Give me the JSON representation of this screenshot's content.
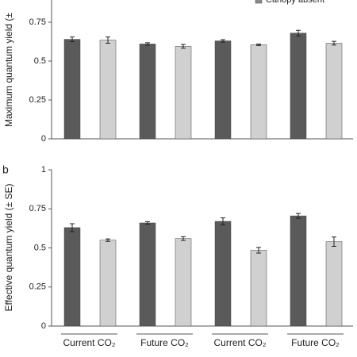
{
  "chart_data": [
    {
      "type": "bar",
      "y_label": "Maximum quantum yield (±",
      "ylim": [
        0,
        1
      ],
      "yticks": [
        0,
        0.25,
        0.5,
        0.75
      ],
      "series": [
        {
          "color": "#5a5a5a",
          "values": [
            0.64,
            0.61,
            0.63,
            0.68
          ],
          "errors": [
            0.015,
            0.008,
            0.008,
            0.018
          ]
        },
        {
          "name": "Canopy absent",
          "color": "#d0d0d0",
          "values": [
            0.635,
            0.595,
            0.605,
            0.615
          ],
          "errors": [
            0.02,
            0.012,
            0.005,
            0.012
          ]
        }
      ]
    },
    {
      "type": "bar",
      "panel_label": "b",
      "y_label": "Effective quantum yield (± SE)",
      "categories": [
        "Current CO₂",
        "Future CO₂",
        "Current CO₂",
        "Future CO₂"
      ],
      "ylim": [
        0,
        1
      ],
      "yticks": [
        0,
        0.25,
        0.5,
        0.75,
        1
      ],
      "series": [
        {
          "color": "#5a5a5a",
          "values": [
            0.63,
            0.66,
            0.67,
            0.705
          ],
          "errors": [
            0.025,
            0.008,
            0.022,
            0.015
          ]
        },
        {
          "color": "#d0d0d0",
          "values": [
            0.55,
            0.56,
            0.485,
            0.54
          ],
          "errors": [
            0.008,
            0.012,
            0.018,
            0.03
          ]
        }
      ]
    }
  ]
}
